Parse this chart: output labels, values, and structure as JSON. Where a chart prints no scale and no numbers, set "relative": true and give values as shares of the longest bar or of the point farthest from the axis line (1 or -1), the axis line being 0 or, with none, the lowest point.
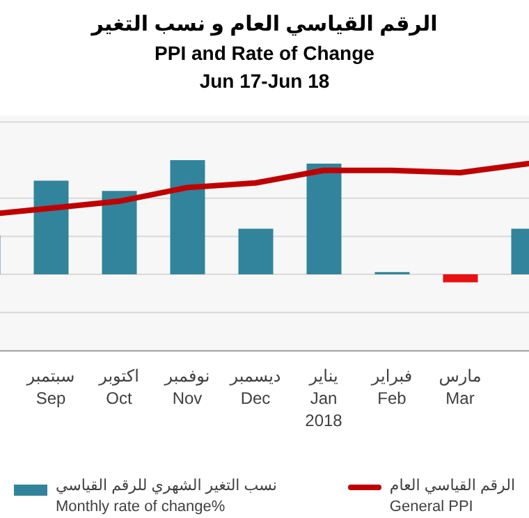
{
  "chart_data": {
    "type": "bar",
    "title": "الرقم القياسي العام و نسب التغير",
    "subtitle": "PPI and Rate of Change\nJun 17-Jun 18",
    "relative": true,
    "grid": "y",
    "legend": "bottom",
    "categories": [
      null,
      "سبتمبر\nSep",
      "اكتوبر\nOct",
      "نوفمبر\nNov",
      "ديسمبر\nDec",
      "يناير\nJan\n2018",
      "فبراير\nFeb",
      "مارس\nMar",
      null
    ],
    "series": [
      {
        "name": "نسب التغير الشهري للرقم القياسي\nMonthly rate of change%",
        "color": "#31849b",
        "colors": [
          "#31849b",
          "#31849b",
          "#31849b",
          "#31849b",
          "#31849b",
          "#31849b",
          "#31849b",
          "#e81010",
          "#31849b"
        ],
        "values": [
          0.34,
          0.82,
          0.73,
          1,
          0.4,
          0.97,
          0.02,
          -0.07,
          0.4
        ]
      },
      {
        "type": "line",
        "name": "الرقم القياسي العام\nGeneral PPI",
        "color": "#c00000",
        "values": [
          0.52,
          0.58,
          0.64,
          0.76,
          0.8,
          0.91,
          0.91,
          0.89,
          0.97
        ]
      }
    ]
  }
}
